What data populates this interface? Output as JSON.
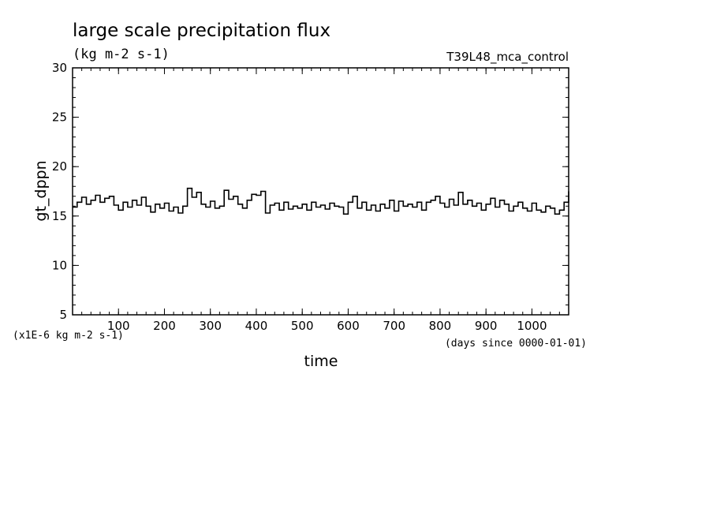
{
  "chart_data": {
    "type": "line",
    "title": "large scale precipitation flux",
    "subtitle": "(kg m-2 s-1)",
    "run_label": "T39L48_mca_control",
    "xlabel": "time",
    "ylabel": "gt_dppn",
    "y_units_note": "(x1E-6 kg m-2 s-1)",
    "x_units_note": "(days since 0000-01-01)",
    "xlim": [
      0,
      1080
    ],
    "ylim": [
      5,
      30
    ],
    "x_ticks": [
      100,
      200,
      300,
      400,
      500,
      600,
      700,
      800,
      900,
      1000
    ],
    "y_ticks": [
      5,
      10,
      15,
      20,
      25,
      30
    ],
    "x_minor_step": 20,
    "y_minor_step": 1,
    "grid": false,
    "series": [
      {
        "color": "#000000",
        "x": [
          0,
          10,
          20,
          30,
          40,
          50,
          60,
          70,
          80,
          90,
          100,
          110,
          120,
          130,
          140,
          150,
          160,
          170,
          180,
          190,
          200,
          210,
          220,
          230,
          240,
          250,
          260,
          270,
          280,
          290,
          300,
          310,
          320,
          330,
          340,
          350,
          360,
          370,
          380,
          390,
          400,
          410,
          420,
          430,
          440,
          450,
          460,
          470,
          480,
          490,
          500,
          510,
          520,
          530,
          540,
          550,
          560,
          570,
          580,
          590,
          600,
          610,
          620,
          630,
          640,
          650,
          660,
          670,
          680,
          690,
          700,
          710,
          720,
          730,
          740,
          750,
          760,
          770,
          780,
          790,
          800,
          810,
          820,
          830,
          840,
          850,
          860,
          870,
          880,
          890,
          900,
          910,
          920,
          930,
          940,
          950,
          960,
          970,
          980,
          990,
          1000,
          1010,
          1020,
          1030,
          1040,
          1050,
          1060,
          1070,
          1080
        ],
        "y": [
          15.9,
          16.4,
          16.9,
          16.2,
          16.6,
          17.1,
          16.4,
          16.8,
          17.0,
          16.1,
          15.6,
          16.4,
          15.9,
          16.6,
          16.1,
          16.9,
          16.0,
          15.4,
          16.2,
          15.8,
          16.3,
          15.5,
          15.9,
          15.3,
          16.0,
          17.8,
          16.9,
          17.4,
          16.2,
          15.9,
          16.5,
          15.8,
          16.0,
          17.6,
          16.7,
          17.0,
          16.2,
          15.8,
          16.6,
          17.2,
          17.1,
          17.5,
          15.3,
          16.1,
          16.3,
          15.6,
          16.4,
          15.7,
          16.0,
          15.8,
          16.2,
          15.6,
          16.4,
          15.9,
          16.1,
          15.7,
          16.3,
          16.0,
          15.9,
          15.2,
          16.4,
          17.0,
          15.8,
          16.4,
          15.6,
          16.1,
          15.5,
          16.2,
          15.8,
          16.6,
          15.5,
          16.5,
          16.0,
          16.2,
          15.9,
          16.4,
          15.6,
          16.4,
          16.6,
          17.0,
          16.3,
          15.9,
          16.7,
          16.1,
          17.4,
          16.2,
          16.6,
          16.0,
          16.3,
          15.6,
          16.2,
          16.8,
          15.9,
          16.6,
          16.2,
          15.5,
          16.0,
          16.4,
          15.8,
          15.5,
          16.3,
          15.6,
          15.4,
          16.0,
          15.8,
          15.2,
          15.6,
          16.4,
          17.5
        ]
      }
    ]
  }
}
